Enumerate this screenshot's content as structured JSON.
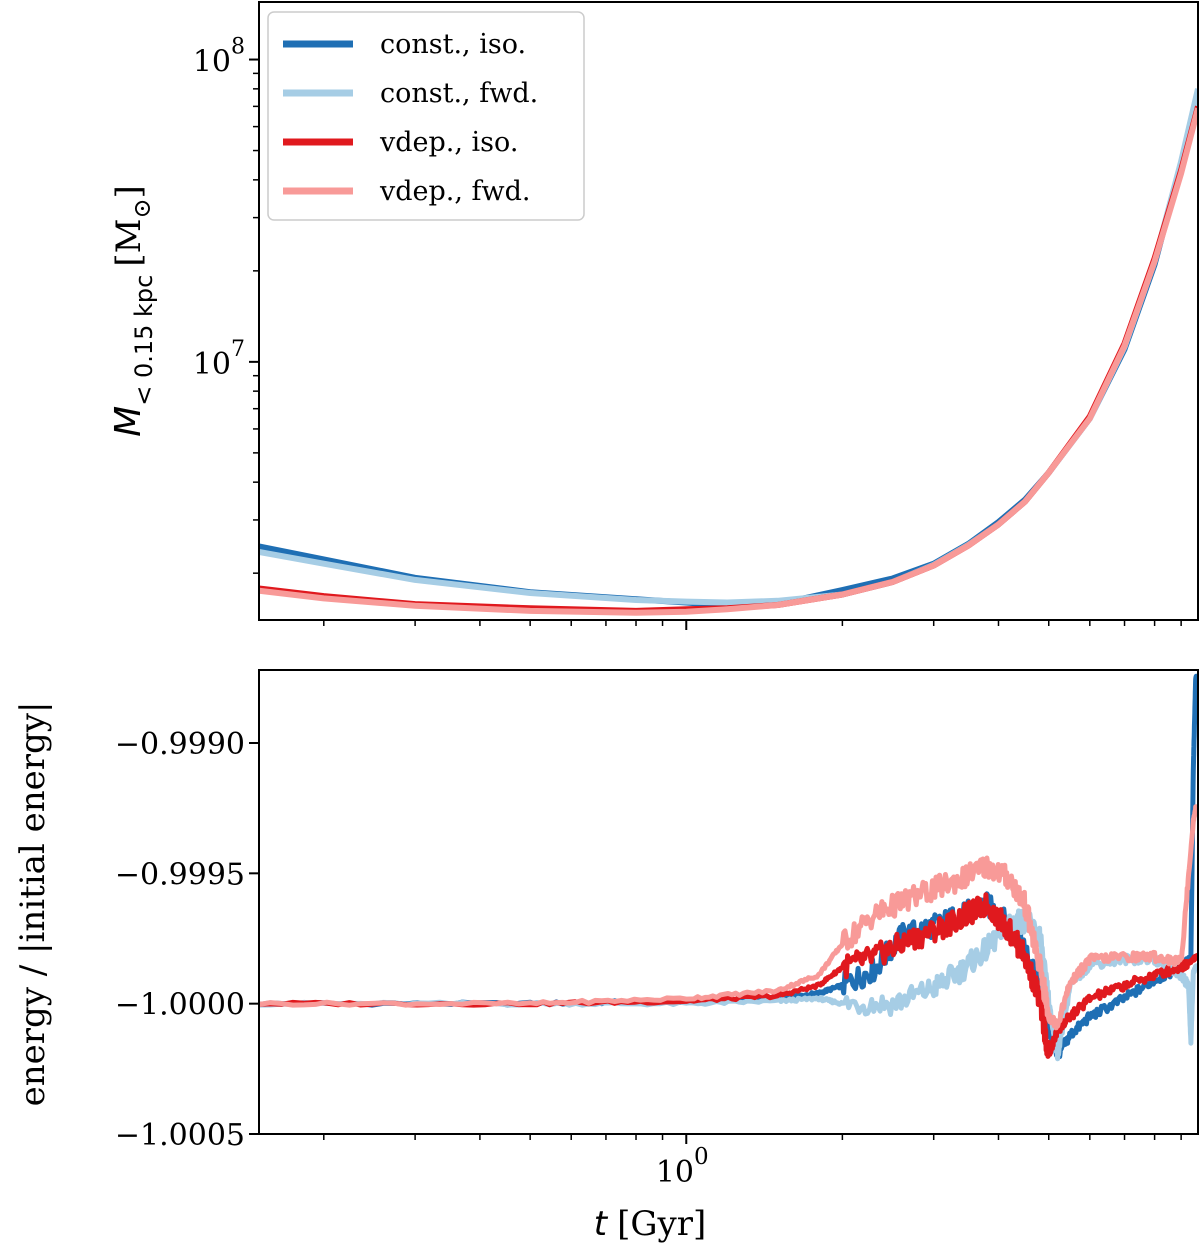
{
  "colors": {
    "const_iso": "#1f6fb4",
    "const_fwd": "#a6cde5",
    "vdep_iso": "#e0191e",
    "vdep_fwd": "#f89a98"
  },
  "chart_data": [
    {
      "type": "line",
      "panel": "top",
      "xscale": "log",
      "yscale": "log",
      "xlim": [
        0.15,
        9.7
      ],
      "ylim": [
        1400000,
        155000000
      ],
      "xlabel": "",
      "ylabel": {
        "symbol": "M",
        "subscript": "< 0.15 kpc",
        "unit_text": "[M",
        "unit_sub": "⊙",
        "unit_close": "]"
      },
      "yticks": [
        {
          "value": 10000000,
          "base": "10",
          "exp": "7"
        },
        {
          "value": 100000000,
          "base": "10",
          "exp": "8"
        }
      ],
      "legend": {
        "placement": "top-left",
        "entries": [
          {
            "key": "const_iso",
            "label": "const., iso."
          },
          {
            "key": "const_fwd",
            "label": "const., fwd."
          },
          {
            "key": "vdep_iso",
            "label": "vdep., iso."
          },
          {
            "key": "vdep_fwd",
            "label": "vdep., fwd."
          }
        ]
      },
      "series": [
        {
          "key": "const_iso",
          "name": "const., iso.",
          "x": [
            0.15,
            0.2,
            0.3,
            0.5,
            0.8,
            1.0,
            1.2,
            1.5,
            2.0,
            2.5,
            3.0,
            3.5,
            4.0,
            4.5,
            5.0,
            6.0,
            7.0,
            8.0,
            9.0,
            9.7
          ],
          "y": [
            2450000,
            2220000,
            1930000,
            1730000,
            1640000,
            1600000,
            1560000,
            1580000,
            1760000,
            1920000,
            2150000,
            2500000,
            2950000,
            3500000,
            4300000,
            6500000,
            11000000,
            21000000,
            45000000,
            78000000
          ]
        },
        {
          "key": "const_fwd",
          "name": "const., fwd.",
          "x": [
            0.15,
            0.2,
            0.3,
            0.5,
            0.8,
            1.0,
            1.2,
            1.5,
            2.0,
            2.5,
            3.0,
            3.5,
            4.0,
            4.5,
            5.0,
            6.0,
            7.0,
            8.0,
            9.0,
            9.7
          ],
          "y": [
            2350000,
            2150000,
            1900000,
            1720000,
            1630000,
            1610000,
            1600000,
            1620000,
            1700000,
            1870000,
            2130000,
            2480000,
            2900000,
            3450000,
            4300000,
            6500000,
            11200000,
            21500000,
            46000000,
            80000000
          ]
        },
        {
          "key": "vdep_iso",
          "name": "vdep., iso.",
          "x": [
            0.15,
            0.2,
            0.3,
            0.5,
            0.8,
            1.0,
            1.2,
            1.5,
            2.0,
            2.5,
            3.0,
            3.5,
            4.0,
            4.5,
            5.0,
            6.0,
            7.0,
            8.0,
            9.0,
            9.7
          ],
          "y": [
            1780000,
            1680000,
            1580000,
            1530000,
            1500000,
            1520000,
            1530000,
            1570000,
            1700000,
            1870000,
            2120000,
            2470000,
            2900000,
            3450000,
            4300000,
            6600000,
            11500000,
            22000000,
            43000000,
            70000000
          ]
        },
        {
          "key": "vdep_fwd",
          "name": "vdep., fwd.",
          "x": [
            0.15,
            0.2,
            0.3,
            0.5,
            0.8,
            1.0,
            1.2,
            1.5,
            2.0,
            2.5,
            3.0,
            3.5,
            4.0,
            4.5,
            5.0,
            6.0,
            7.0,
            8.0,
            9.0,
            9.7
          ],
          "y": [
            1750000,
            1650000,
            1560000,
            1500000,
            1480000,
            1490000,
            1520000,
            1570000,
            1700000,
            1870000,
            2120000,
            2470000,
            2900000,
            3450000,
            4300000,
            6500000,
            11300000,
            21500000,
            42000000,
            69000000
          ]
        }
      ]
    },
    {
      "type": "line",
      "panel": "bottom",
      "xscale": "log",
      "yscale": "linear",
      "xlim": [
        0.15,
        9.7
      ],
      "ylim": [
        -1.0005,
        -0.99872
      ],
      "xlabel": {
        "symbol": "t",
        "unit": "[Gyr]"
      },
      "ylabel": "energy / |initial energy|",
      "xticks": [
        {
          "value": 1.0,
          "base": "10",
          "exp": "0"
        }
      ],
      "yticks": [
        {
          "value": -0.999,
          "label": "−0.9990"
        },
        {
          "value": -0.9995,
          "label": "−0.9995"
        },
        {
          "value": -1.0,
          "label": "−1.0000"
        },
        {
          "value": -1.0005,
          "label": "−1.0005"
        }
      ],
      "series": [
        {
          "key": "const_iso",
          "name": "const., iso.",
          "x": [
            0.15,
            0.5,
            1.0,
            1.5,
            1.8,
            2.0,
            2.3,
            2.6,
            3.0,
            3.4,
            3.8,
            4.2,
            4.5,
            4.8,
            5.0,
            5.2,
            5.5,
            6.0,
            7.0,
            8.0,
            9.0,
            9.4,
            9.5,
            9.6,
            9.7
          ],
          "y": [
            -1.0,
            -1.0,
            -0.99999,
            -0.99998,
            -0.99996,
            -0.99993,
            -0.99987,
            -0.99974,
            -0.9997,
            -0.99966,
            -0.99962,
            -0.9997,
            -0.9998,
            -0.99994,
            -1.0001,
            -1.0002,
            -1.00012,
            -1.00005,
            -0.99998,
            -0.99991,
            -0.99986,
            -0.99982,
            -0.9991,
            -0.99875,
            -0.99875
          ]
        },
        {
          "key": "const_fwd",
          "name": "const., fwd.",
          "x": [
            0.15,
            0.5,
            1.0,
            1.5,
            1.8,
            2.0,
            2.5,
            3.0,
            3.4,
            3.8,
            4.2,
            4.5,
            4.8,
            5.0,
            5.2,
            5.5,
            6.0,
            7.0,
            8.0,
            9.0,
            9.3,
            9.4,
            9.5,
            9.6,
            9.7
          ],
          "y": [
            -1.0,
            -1.0,
            -1.0,
            -0.99999,
            -0.99998,
            -1.0,
            -1.0,
            -0.99994,
            -0.99987,
            -0.99979,
            -0.99969,
            -0.99968,
            -0.99974,
            -1.0,
            -1.0002,
            -0.99993,
            -0.99985,
            -0.99983,
            -0.99983,
            -0.99989,
            -0.99993,
            -1.00015,
            -0.99988,
            -0.99986,
            -0.99986
          ]
        },
        {
          "key": "vdep_iso",
          "name": "vdep., iso.",
          "x": [
            0.15,
            0.5,
            1.0,
            1.5,
            1.8,
            2.0,
            2.3,
            2.6,
            3.0,
            3.4,
            3.8,
            4.2,
            4.5,
            4.8,
            5.0,
            5.2,
            5.5,
            6.0,
            7.0,
            8.0,
            9.0,
            9.5,
            9.6,
            9.7
          ],
          "y": [
            -1.0,
            -1.0,
            -0.99999,
            -0.99997,
            -0.99993,
            -0.99986,
            -0.99982,
            -0.99977,
            -0.99972,
            -0.99967,
            -0.99962,
            -0.99972,
            -0.99982,
            -0.99998,
            -1.0002,
            -1.0001,
            -1.00005,
            -0.99998,
            -0.99993,
            -0.99989,
            -0.99986,
            -0.99983,
            -0.99982,
            -0.99982
          ]
        },
        {
          "key": "vdep_fwd",
          "name": "vdep., fwd.",
          "x": [
            0.15,
            0.5,
            1.0,
            1.5,
            1.8,
            2.0,
            2.3,
            2.6,
            3.0,
            3.4,
            3.8,
            4.2,
            4.5,
            4.8,
            5.0,
            5.2,
            5.5,
            6.0,
            7.0,
            8.0,
            9.0,
            9.5,
            9.6,
            9.7
          ],
          "y": [
            -1.0,
            -1.0,
            -0.99998,
            -0.99995,
            -0.99989,
            -0.99977,
            -0.99966,
            -0.99961,
            -0.99956,
            -0.99952,
            -0.99947,
            -0.99952,
            -0.99962,
            -0.99985,
            -1.00005,
            -1.00008,
            -0.99992,
            -0.99983,
            -0.99982,
            -0.99982,
            -0.99984,
            -0.9993,
            -0.99925,
            -0.99925
          ]
        }
      ]
    }
  ]
}
